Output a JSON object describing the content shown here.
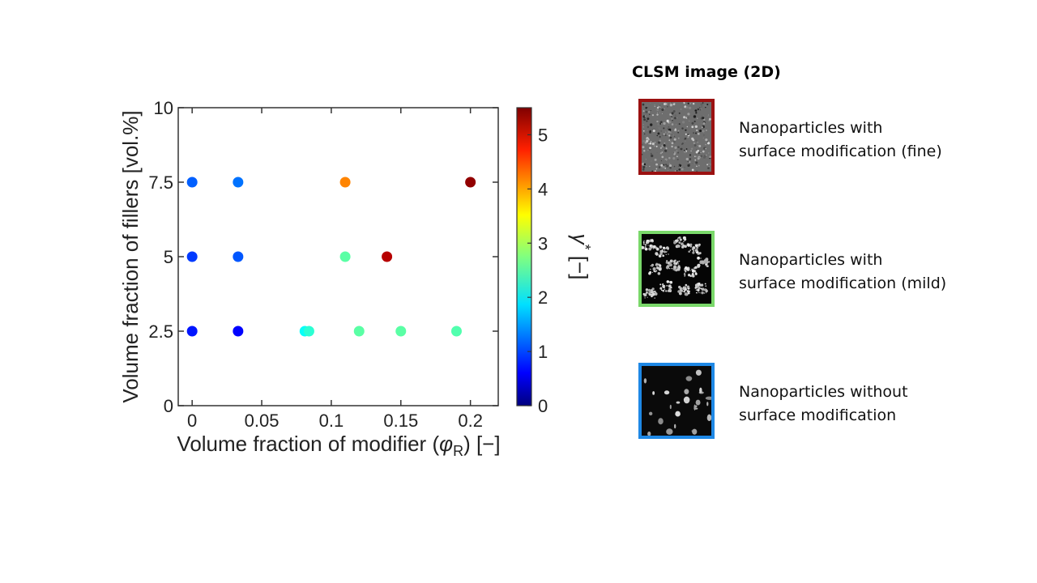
{
  "chart_data": {
    "type": "scatter",
    "title": "",
    "xlabel_main": "Volume fraction of modifier (",
    "xlabel_symbol": "φ",
    "xlabel_sub": "R",
    "xlabel_tail": ") [−]",
    "ylabel": "Volume fraction of fillers [vol.%]",
    "xlim": [
      -0.01,
      0.22
    ],
    "ylim": [
      0,
      10
    ],
    "xticks": [
      0,
      0.05,
      0.1,
      0.15,
      0.2
    ],
    "xtick_labels": [
      "0",
      "0.05",
      "0.1",
      "0.15",
      "0.2"
    ],
    "yticks": [
      0,
      2.5,
      5,
      7.5,
      10
    ],
    "ytick_labels": [
      "0",
      "2.5",
      "5",
      "7.5",
      "10"
    ],
    "grid": false,
    "colorbar": {
      "label_symbol": "γ",
      "label_sup": "*",
      "label_tail": " [−]",
      "min": 0,
      "max": 5.5,
      "ticks": [
        0,
        1,
        2,
        3,
        4,
        5
      ],
      "tick_labels": [
        "0",
        "1",
        "2",
        "3",
        "4",
        "5"
      ],
      "colormap": "jet"
    },
    "points": [
      {
        "x": 0,
        "y": 7.5,
        "c": 1.2
      },
      {
        "x": 0.033,
        "y": 7.5,
        "c": 1.3
      },
      {
        "x": 0.11,
        "y": 7.5,
        "c": 4.1
      },
      {
        "x": 0.2,
        "y": 7.5,
        "c": 5.4
      },
      {
        "x": 0,
        "y": 5,
        "c": 1.0
      },
      {
        "x": 0.033,
        "y": 5,
        "c": 1.15
      },
      {
        "x": 0.11,
        "y": 5,
        "c": 2.55
      },
      {
        "x": 0.14,
        "y": 5,
        "c": 5.2
      },
      {
        "x": 0,
        "y": 2.5,
        "c": 0.8
      },
      {
        "x": 0.033,
        "y": 2.5,
        "c": 0.7
      },
      {
        "x": 0.081,
        "y": 2.5,
        "c": 2.1
      },
      {
        "x": 0.084,
        "y": 2.5,
        "c": 2.3
      },
      {
        "x": 0.12,
        "y": 2.5,
        "c": 2.55
      },
      {
        "x": 0.15,
        "y": 2.5,
        "c": 2.55
      },
      {
        "x": 0.19,
        "y": 2.5,
        "c": 2.5
      }
    ]
  },
  "legend": {
    "title": "CLSM image (2D)",
    "items": [
      {
        "line1": "Nanoparticles with",
        "line2": "surface modification (fine)",
        "border_color": "#9b1111",
        "pattern": "fine"
      },
      {
        "line1": "Nanoparticles with",
        "line2": "surface modification (mild)",
        "border_color": "#7ad86a",
        "pattern": "mild"
      },
      {
        "line1": "Nanoparticles without",
        "line2": "surface modification",
        "border_color": "#1e88e5",
        "pattern": "coarse"
      }
    ]
  }
}
